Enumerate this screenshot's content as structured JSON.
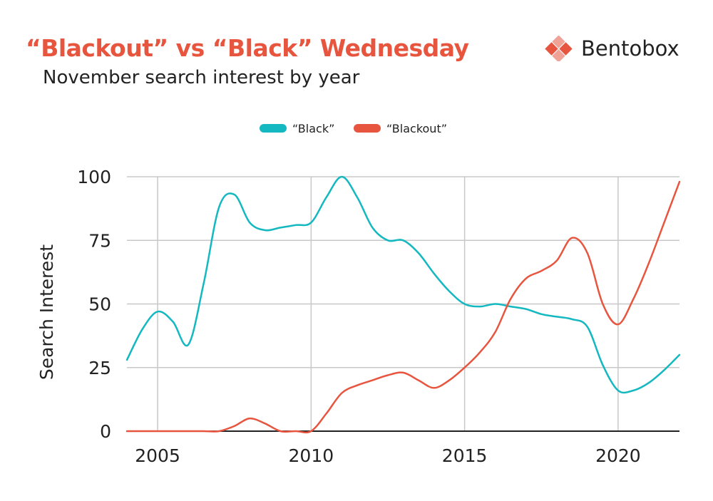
{
  "header": {
    "title": "“Blackout” vs “Black” Wednesday",
    "subtitle": "November search interest by year"
  },
  "brand": {
    "name": "Bentobox",
    "icon": "bento-diamond-logo"
  },
  "colors": {
    "title": "#e8553f",
    "black_series": "#13b8c0",
    "blackout_series": "#e8553f",
    "grid": "#c8c8c8",
    "axis": "#222222"
  },
  "chart_data": {
    "type": "line",
    "title": "“Blackout” vs “Black” Wednesday",
    "subtitle": "November search interest by year",
    "xlabel": "",
    "ylabel": "Search Interest",
    "xlim": [
      2004.0,
      2022.0
    ],
    "ylim": [
      0,
      100
    ],
    "xticks": [
      2005,
      2010,
      2015,
      2020
    ],
    "yticks": [
      0,
      25,
      50,
      75,
      100
    ],
    "grid": true,
    "legend_position": "top-center",
    "series": [
      {
        "name": "“Black”",
        "color": "#13b8c0",
        "x": [
          2004.0,
          2004.5,
          2005.0,
          2005.5,
          2006.0,
          2006.5,
          2007.0,
          2007.5,
          2008.0,
          2008.5,
          2009.0,
          2009.5,
          2010.0,
          2010.5,
          2011.0,
          2011.5,
          2012.0,
          2012.5,
          2013.0,
          2013.5,
          2014.0,
          2014.5,
          2015.0,
          2015.5,
          2016.0,
          2016.5,
          2017.0,
          2017.5,
          2018.0,
          2018.5,
          2019.0,
          2019.5,
          2020.0,
          2020.5,
          2021.0,
          2021.5,
          2022.0
        ],
        "y": [
          28,
          40,
          47,
          43,
          34,
          58,
          88,
          93,
          82,
          79,
          80,
          81,
          82,
          92,
          100,
          92,
          80,
          75,
          75,
          70,
          62,
          55,
          50,
          49,
          50,
          49,
          48,
          46,
          45,
          44,
          41,
          26,
          16,
          16,
          19,
          24,
          30
        ]
      },
      {
        "name": "“Blackout”",
        "color": "#e8553f",
        "x": [
          2004.0,
          2004.5,
          2005.0,
          2005.5,
          2006.0,
          2006.5,
          2007.0,
          2007.5,
          2008.0,
          2008.5,
          2009.0,
          2009.5,
          2010.0,
          2010.5,
          2011.0,
          2011.5,
          2012.0,
          2012.5,
          2013.0,
          2013.5,
          2014.0,
          2014.5,
          2015.0,
          2015.5,
          2016.0,
          2016.5,
          2017.0,
          2017.5,
          2018.0,
          2018.5,
          2019.0,
          2019.5,
          2020.0,
          2020.5,
          2021.0,
          2021.5,
          2022.0
        ],
        "y": [
          0,
          0,
          0,
          0,
          0,
          0,
          0,
          2,
          5,
          3,
          0,
          0,
          0,
          7,
          15,
          18,
          20,
          22,
          23,
          20,
          17,
          20,
          25,
          31,
          39,
          52,
          60,
          63,
          67,
          76,
          70,
          50,
          42,
          52,
          66,
          82,
          98
        ]
      }
    ]
  }
}
